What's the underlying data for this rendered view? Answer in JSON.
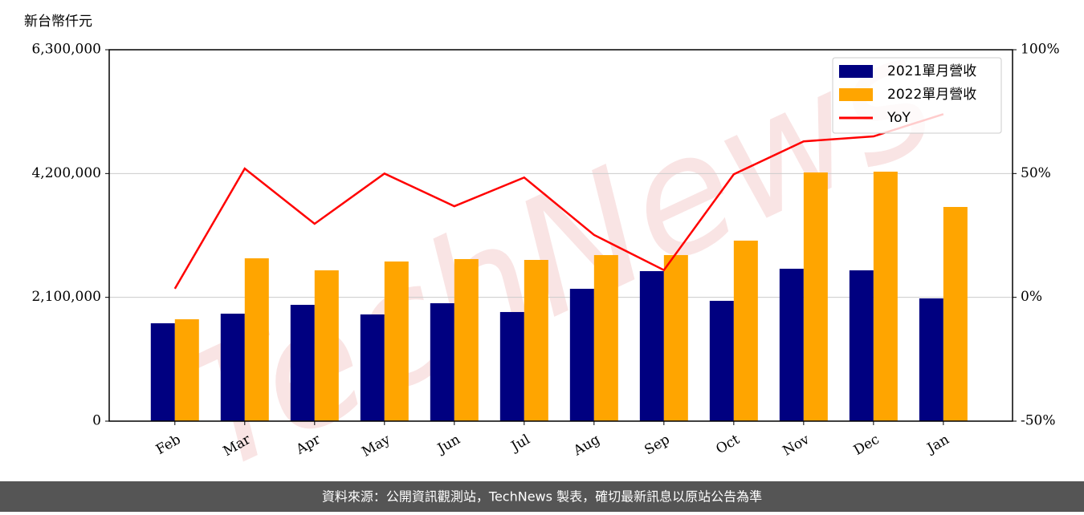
{
  "chart_data": {
    "type": "bar",
    "y_label": "新台幣仟元",
    "watermark": "TechNews",
    "footer": "資料來源：公開資訊觀測站，TechNews 製表，確切最新訊息以原站公告為準",
    "categories": [
      "Feb",
      "Mar",
      "Apr",
      "May",
      "Jun",
      "Jul",
      "Aug",
      "Sep",
      "Oct",
      "Nov",
      "Dec",
      "Jan"
    ],
    "series": [
      {
        "name": "2021單月營收",
        "color": "#000080",
        "values": [
          1660000,
          1823000,
          1973000,
          1810000,
          2000000,
          1851000,
          2245000,
          2545000,
          2041000,
          2585000,
          2558000,
          2082000
        ]
      },
      {
        "name": "2022單月營收",
        "color": "#ffa500",
        "values": [
          1728000,
          2762000,
          2558000,
          2708000,
          2749000,
          2735000,
          2817000,
          2817000,
          3062000,
          4218000,
          4232000,
          3633000
        ]
      },
      {
        "name": "YoY",
        "color": "#ff0000",
        "type": "line",
        "axis": "y2",
        "values": [
          3.5,
          52,
          29.7,
          50,
          36.8,
          48.4,
          25.2,
          11,
          49.7,
          63,
          65,
          74
        ]
      }
    ],
    "ylim": [
      0,
      6300000
    ],
    "yticks": [
      {
        "value": 0,
        "label": "0"
      },
      {
        "value": 2100000,
        "label": "2,100,000"
      },
      {
        "value": 4200000,
        "label": "4,200,000"
      },
      {
        "value": 6300000,
        "label": "6,300,000"
      }
    ],
    "y2lim": [
      -50,
      100
    ],
    "y2ticks": [
      {
        "value": -50,
        "label": "-50%"
      },
      {
        "value": 0,
        "label": "0%"
      },
      {
        "value": 50,
        "label": "50%"
      },
      {
        "value": 100,
        "label": "100%"
      }
    ],
    "grid": true,
    "legend": "upper right"
  }
}
